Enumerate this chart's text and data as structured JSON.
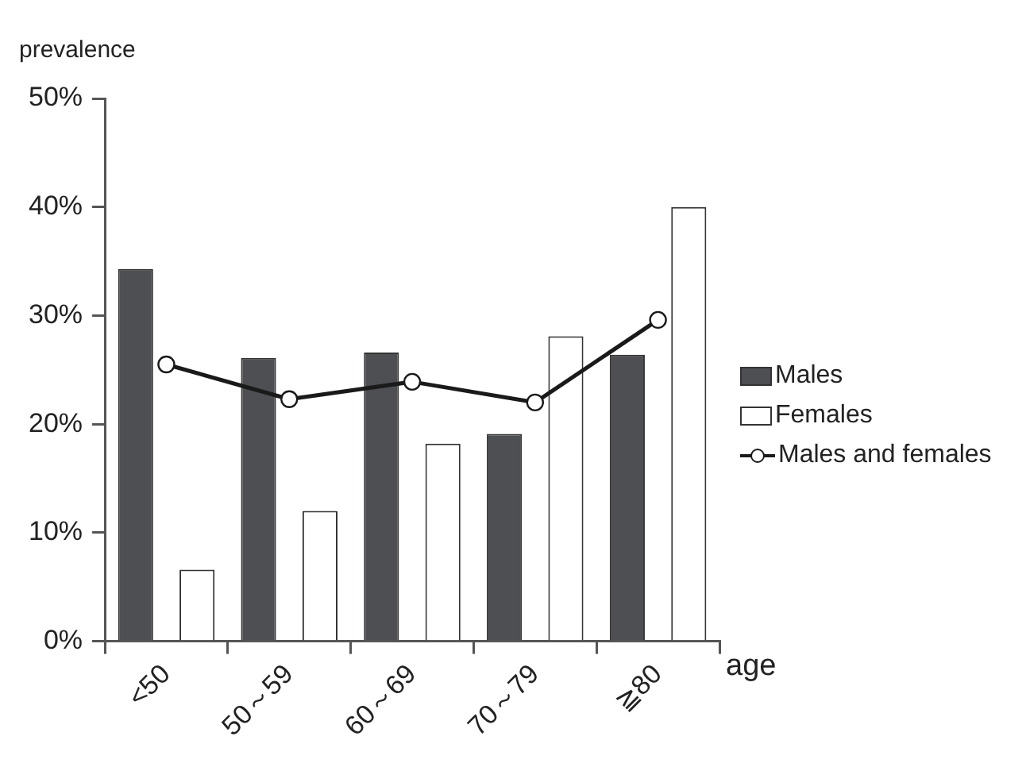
{
  "chart_data": {
    "type": "bar",
    "ylabel": "prevalence",
    "xlabel": "age",
    "categories": [
      "<50",
      "50～59",
      "60～69",
      "70～79",
      "≧80"
    ],
    "series": [
      {
        "name": "Males",
        "color": "#4d4f52",
        "values": [
          34.3,
          26.1,
          26.6,
          19.1,
          26.4
        ]
      },
      {
        "name": "Females",
        "color": "#ffffff",
        "values": [
          6.6,
          12.0,
          18.2,
          28.1,
          40.0
        ]
      },
      {
        "name": "Males and females",
        "type": "line",
        "color": "#1a1a1a",
        "values": [
          25.5,
          22.3,
          23.9,
          22.0,
          29.6
        ]
      }
    ],
    "ylim": [
      0,
      50
    ],
    "yticks": [
      {
        "value": 0,
        "label": "0%"
      },
      {
        "value": 10,
        "label": "10%"
      },
      {
        "value": 20,
        "label": "20%"
      },
      {
        "value": 30,
        "label": "30%"
      },
      {
        "value": 40,
        "label": "40%"
      },
      {
        "value": 50,
        "label": "50%"
      }
    ],
    "grid": false,
    "legend": "right",
    "marker": "circle",
    "line_style": "solid"
  }
}
